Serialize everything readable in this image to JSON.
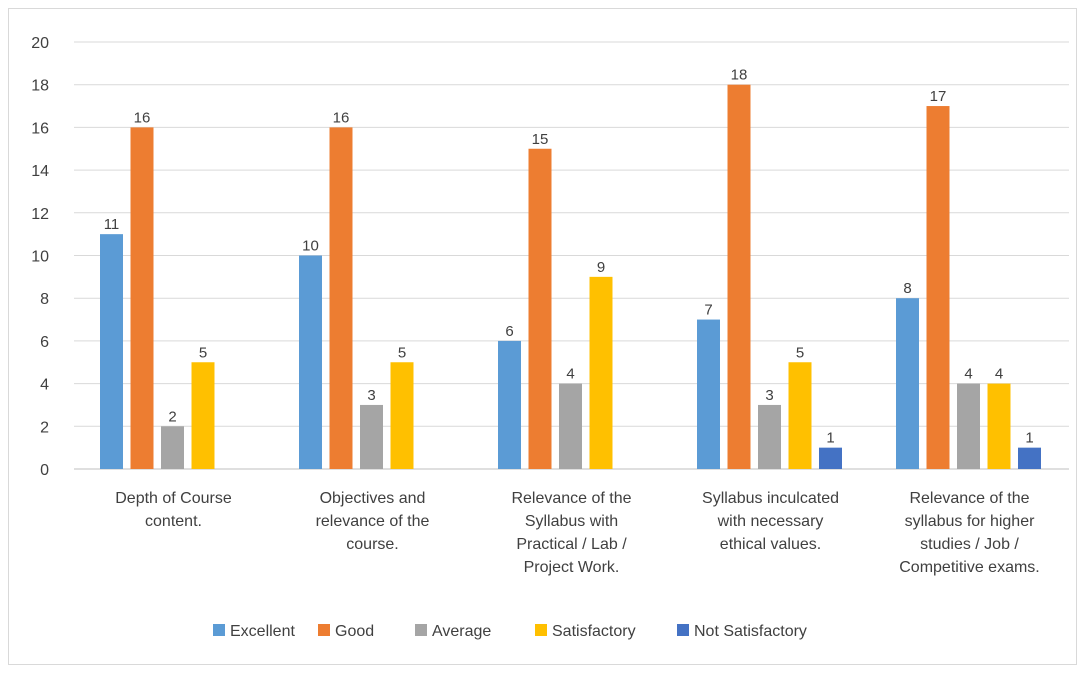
{
  "chart_data": {
    "type": "bar",
    "title": "",
    "xlabel": "",
    "ylabel": "",
    "ylim": [
      0,
      20
    ],
    "yticks": [
      "0",
      "2",
      "4",
      "6",
      "8",
      "10",
      "12",
      "14",
      "16",
      "18",
      "20"
    ],
    "grid": true,
    "legend_position": "bottom",
    "categories": [
      [
        "Depth of Course",
        "content."
      ],
      [
        "Objectives and",
        "relevance of the",
        "course."
      ],
      [
        "Relevance of the",
        "Syllabus with",
        "Practical / Lab /",
        "Project Work."
      ],
      [
        "Syllabus inculcated",
        "with necessary",
        "ethical values."
      ],
      [
        "Relevance of the",
        "syllabus for higher",
        "studies / Job /",
        "Competitive exams."
      ]
    ],
    "series": [
      {
        "name": "Excellent",
        "color": "#5b9bd5",
        "values": [
          11,
          10,
          6,
          7,
          8
        ]
      },
      {
        "name": "Good",
        "color": "#ed7d31",
        "values": [
          16,
          16,
          15,
          18,
          17
        ]
      },
      {
        "name": "Average",
        "color": "#a5a5a5",
        "values": [
          2,
          3,
          4,
          3,
          4
        ]
      },
      {
        "name": "Satisfactory",
        "color": "#ffc000",
        "values": [
          5,
          5,
          9,
          5,
          4
        ]
      },
      {
        "name": "Not Satisfactory",
        "color": "#4472c4",
        "values": [
          0,
          0,
          0,
          1,
          1
        ]
      }
    ]
  }
}
